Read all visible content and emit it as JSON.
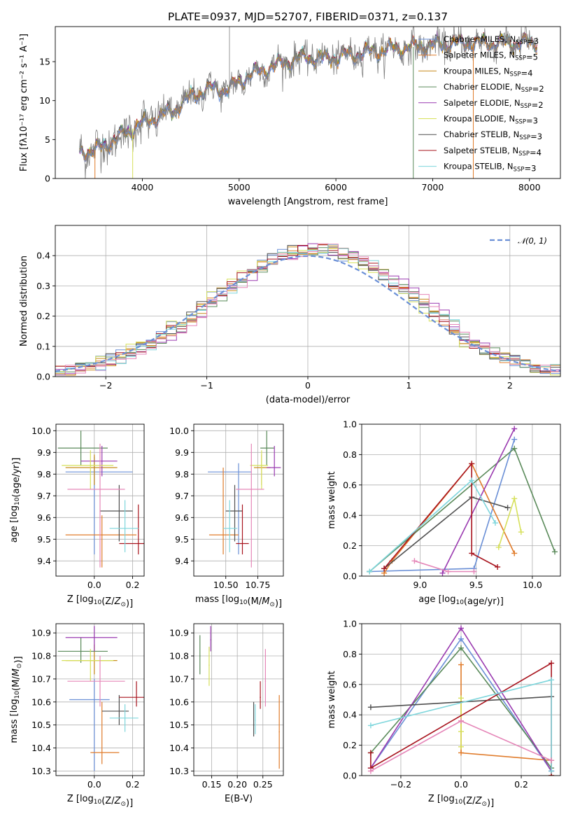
{
  "figure": {
    "title": "PLATE=0937, MJD=52707, FIBERID=0371, z=0.137"
  },
  "colors": {
    "data": "#808080",
    "models": [
      "#6a8fd6",
      "#e07b2a",
      "#c88a1a",
      "#5a8a5a",
      "#9a3ab0",
      "#d6e05a",
      "#505050",
      "#a8141e",
      "#7ed6dc"
    ],
    "extra_pink": "#e586b8",
    "normal": "#6a8fd6",
    "grid": "#b0b0b0"
  },
  "chart_data": [
    {
      "id": "spectrum",
      "type": "line",
      "title": "PLATE=0937, MJD=52707, FIBERID=0371, z=0.137",
      "xlabel": "wavelength [Angstrom, rest frame]",
      "ylabel": "Flux [fλ10⁻¹⁷ erg cm⁻² s⁻¹ A⁻¹]",
      "xlim": [
        3100,
        8320
      ],
      "ylim": [
        0,
        19.5
      ],
      "xticks": [
        4000,
        5000,
        6000,
        7000,
        8000
      ],
      "yticks": [
        0,
        5,
        10,
        15
      ],
      "grid": false,
      "legend_position": "top-right",
      "continuum_points": [
        [
          3350,
          3.4
        ],
        [
          3500,
          3.6
        ],
        [
          3650,
          4.5
        ],
        [
          3800,
          5.6
        ],
        [
          3950,
          6.8
        ],
        [
          4100,
          7.6
        ],
        [
          4300,
          8.6
        ],
        [
          4500,
          10.5
        ],
        [
          4700,
          11.5
        ],
        [
          4900,
          11.5
        ],
        [
          5100,
          13.2
        ],
        [
          5300,
          14.2
        ],
        [
          5500,
          15.0
        ],
        [
          5700,
          15.6
        ],
        [
          5900,
          15.4
        ],
        [
          6100,
          15.8
        ],
        [
          6300,
          16.2
        ],
        [
          6500,
          16.5
        ],
        [
          6700,
          16.8
        ],
        [
          6900,
          17.0
        ],
        [
          7100,
          17.2
        ],
        [
          7300,
          17.4
        ]
      ],
      "legend": [
        "Chabrier MILES, N_SSP=3",
        "Salpeter MILES, N_SSP=5",
        "Kroupa MILES, N_SSP=4",
        "Chabrier ELODIE, N_SSP=2",
        "Salpeter ELODIE, N_SSP=2",
        "Kroupa ELODIE, N_SSP=3",
        "Chabrier STELIB, N_SSP=3",
        "Salpeter STELIB, N_SSP=4",
        "Kroupa STELIB, N_SSP=3"
      ]
    },
    {
      "id": "residuals",
      "type": "bar",
      "xlabel": "(data-model)/error",
      "ylabel": "Normed distribution",
      "xlim": [
        -2.5,
        2.5
      ],
      "ylim": [
        0,
        0.5
      ],
      "xticks": [
        -2,
        -1,
        0,
        1,
        2
      ],
      "yticks": [
        0.0,
        0.1,
        0.2,
        0.3,
        0.4
      ],
      "grid": true,
      "legend_position": "top-right",
      "normal_label": "𝒩(0, 1)",
      "hist_bin_width": 0.1
    },
    {
      "id": "age_vs_Z",
      "type": "scatter",
      "xlabel": "Z [log10(Z/Z⊙)]",
      "ylabel": "age  [log10(age/yr)]",
      "xlim": [
        -0.2,
        0.26
      ],
      "ylim": [
        9.33,
        10.03
      ],
      "xticks": [
        0.0,
        0.2
      ],
      "yticks": [
        9.4,
        9.5,
        9.6,
        9.7,
        9.8,
        9.9,
        10.0
      ],
      "grid": true,
      "points": [
        {
          "c": 0,
          "x": 0.0,
          "y": 9.81,
          "xe": [
            -0.15,
            0.2
          ],
          "ye": [
            9.43,
            9.88
          ]
        },
        {
          "c": 1,
          "x": 0.04,
          "y": 9.52,
          "xe": [
            -0.15,
            0.22
          ],
          "ye": [
            9.37,
            9.61
          ]
        },
        {
          "c": 2,
          "x": 0.0,
          "y": 9.83,
          "xe": [
            -0.15,
            0.12
          ],
          "ye": [
            9.75,
            9.89
          ]
        },
        {
          "c": 3,
          "x": -0.07,
          "y": 9.92,
          "xe": [
            -0.19,
            0.07
          ],
          "ye": [
            9.84,
            10.0
          ]
        },
        {
          "c": 4,
          "x": 0.04,
          "y": 9.86,
          "xe": [
            -0.07,
            0.12
          ],
          "ye": [
            9.79,
            9.93
          ]
        },
        {
          "c": 5,
          "x": -0.02,
          "y": 9.84,
          "xe": [
            -0.17,
            0.1
          ],
          "ye": [
            9.73,
            9.91
          ]
        },
        {
          "c": 6,
          "x": 0.13,
          "y": 9.63,
          "xe": [
            0.03,
            0.2
          ],
          "ye": [
            9.49,
            9.75
          ]
        },
        {
          "c": 7,
          "x": 0.23,
          "y": 9.48,
          "xe": [
            0.13,
            0.26
          ],
          "ye": [
            9.43,
            9.66
          ]
        },
        {
          "c": 8,
          "x": 0.16,
          "y": 9.55,
          "xe": [
            0.08,
            0.23
          ],
          "ye": [
            9.44,
            9.68
          ]
        },
        {
          "c": "pink",
          "x": 0.03,
          "y": 9.73,
          "xe": [
            -0.14,
            0.16
          ],
          "ye": [
            9.37,
            9.94
          ]
        }
      ]
    },
    {
      "id": "age_vs_mass",
      "type": "scatter",
      "xlabel": "mass [log10(M/M⊙)]",
      "ylabel": "",
      "xlim": [
        10.25,
        10.95
      ],
      "ylim": [
        9.33,
        10.03
      ],
      "xticks": [
        10.5,
        10.75
      ],
      "yticks": [
        9.4,
        9.5,
        9.6,
        9.7,
        9.8,
        9.9,
        10.0
      ],
      "grid": true,
      "points": [
        {
          "c": 0,
          "x": 10.6,
          "y": 9.81,
          "xe": [
            10.36,
            10.7
          ],
          "ye": [
            9.43,
            9.85
          ]
        },
        {
          "c": 1,
          "x": 10.48,
          "y": 9.52,
          "xe": [
            10.37,
            10.6
          ],
          "ye": [
            9.43,
            9.83
          ]
        },
        {
          "c": 2,
          "x": 10.78,
          "y": 9.83,
          "xe": [
            10.72,
            10.85
          ],
          "ye": [
            9.75,
            9.89
          ]
        },
        {
          "c": 3,
          "x": 10.82,
          "y": 9.92,
          "xe": [
            10.77,
            10.88
          ],
          "ye": [
            9.84,
            10.0
          ]
        },
        {
          "c": 4,
          "x": 10.88,
          "y": 9.83,
          "xe": [
            10.82,
            10.93
          ],
          "ye": [
            9.79,
            9.93
          ]
        },
        {
          "c": 5,
          "x": 10.78,
          "y": 9.84,
          "xe": [
            10.69,
            10.83
          ],
          "ye": [
            9.73,
            9.91
          ]
        },
        {
          "c": 6,
          "x": 10.57,
          "y": 9.63,
          "xe": [
            10.5,
            10.63
          ],
          "ye": [
            9.49,
            9.75
          ]
        },
        {
          "c": 7,
          "x": 10.63,
          "y": 9.48,
          "xe": [
            10.58,
            10.68
          ],
          "ye": [
            9.43,
            9.66
          ]
        },
        {
          "c": 8,
          "x": 10.53,
          "y": 9.55,
          "xe": [
            10.48,
            10.59
          ],
          "ye": [
            9.44,
            9.68
          ]
        },
        {
          "c": "pink",
          "x": 10.7,
          "y": 9.73,
          "xe": [
            10.58,
            10.8
          ],
          "ye": [
            9.37,
            9.94
          ]
        }
      ]
    },
    {
      "id": "weight_vs_age",
      "type": "line",
      "xlabel": "age  [log10(age/yr)]",
      "ylabel": "mass weight",
      "xlim": [
        8.48,
        10.25
      ],
      "ylim": [
        0,
        1.0
      ],
      "xticks": [
        9.0,
        9.5,
        10.0
      ],
      "yticks": [
        0.0,
        0.2,
        0.4,
        0.6,
        0.8,
        1.0
      ],
      "grid": true,
      "series": [
        {
          "c": 0,
          "points": [
            [
              8.55,
              0.03
            ],
            [
              9.48,
              0.05
            ],
            [
              9.84,
              0.9
            ]
          ]
        },
        {
          "c": 1,
          "points": [
            [
              8.68,
              0.02
            ],
            [
              8.75,
              0.1
            ],
            [
              9.46,
              0.74
            ],
            [
              9.84,
              0.15
            ]
          ]
        },
        {
          "c": 3,
          "points": [
            [
              8.55,
              0.03
            ],
            [
              9.84,
              0.84
            ],
            [
              10.2,
              0.16
            ]
          ]
        },
        {
          "c": 4,
          "points": [
            [
              9.2,
              0.02
            ],
            [
              9.84,
              0.97
            ]
          ]
        },
        {
          "c": 5,
          "points": [
            [
              9.7,
              0.19
            ],
            [
              9.84,
              0.51
            ],
            [
              9.9,
              0.29
            ]
          ]
        },
        {
          "c": 6,
          "points": [
            [
              8.68,
              0.05
            ],
            [
              9.46,
              0.52
            ],
            [
              9.78,
              0.45
            ]
          ]
        },
        {
          "c": 7,
          "points": [
            [
              8.68,
              0.05
            ],
            [
              9.46,
              0.74
            ],
            [
              9.46,
              0.15
            ],
            [
              9.69,
              0.06
            ]
          ]
        },
        {
          "c": 8,
          "points": [
            [
              8.55,
              0.03
            ],
            [
              9.46,
              0.63
            ],
            [
              9.67,
              0.35
            ]
          ]
        },
        {
          "c": "pink",
          "points": [
            [
              8.95,
              0.1
            ],
            [
              9.25,
              0.03
            ],
            [
              9.48,
              0.03
            ]
          ]
        }
      ]
    },
    {
      "id": "mass_vs_Z",
      "type": "scatter",
      "xlabel": "Z [log10(Z/Z⊙)]",
      "ylabel": "mass [log10(M/M⊙)]",
      "xlim": [
        -0.2,
        0.26
      ],
      "ylim": [
        10.28,
        10.94
      ],
      "xticks": [
        0.0,
        0.2
      ],
      "yticks": [
        10.3,
        10.4,
        10.5,
        10.6,
        10.7,
        10.8,
        10.9
      ],
      "grid": true,
      "points": [
        {
          "c": 0,
          "x": 0.0,
          "y": 10.61,
          "xe": [
            -0.13,
            0.08
          ],
          "ye": [
            10.3,
            10.7
          ]
        },
        {
          "c": 1,
          "x": 0.04,
          "y": 10.38,
          "xe": [
            -0.02,
            0.13
          ],
          "ye": [
            10.33,
            10.6
          ]
        },
        {
          "c": 2,
          "x": 0.0,
          "y": 10.78,
          "xe": [
            -0.15,
            0.12
          ],
          "ye": [
            10.72,
            10.85
          ]
        },
        {
          "c": 3,
          "x": -0.07,
          "y": 10.82,
          "xe": [
            -0.19,
            0.07
          ],
          "ye": [
            10.77,
            10.88
          ]
        },
        {
          "c": 4,
          "x": 0.0,
          "y": 10.88,
          "xe": [
            -0.15,
            0.12
          ],
          "ye": [
            10.82,
            10.93
          ]
        },
        {
          "c": 5,
          "x": -0.02,
          "y": 10.78,
          "xe": [
            -0.17,
            0.1
          ],
          "ye": [
            10.69,
            10.83
          ]
        },
        {
          "c": 6,
          "x": 0.13,
          "y": 10.56,
          "xe": [
            0.04,
            0.18
          ],
          "ye": [
            10.5,
            10.63
          ]
        },
        {
          "c": 7,
          "x": 0.22,
          "y": 10.62,
          "xe": [
            0.13,
            0.26
          ],
          "ye": [
            10.58,
            10.69
          ]
        },
        {
          "c": 8,
          "x": 0.16,
          "y": 10.53,
          "xe": [
            0.08,
            0.23
          ],
          "ye": [
            10.47,
            10.59
          ]
        },
        {
          "c": "pink",
          "x": 0.03,
          "y": 10.69,
          "xe": [
            -0.14,
            0.16
          ],
          "ye": [
            10.58,
            10.8
          ]
        }
      ]
    },
    {
      "id": "mass_vs_ebv",
      "type": "scatter",
      "xlabel": "E(B-V)",
      "ylabel": "",
      "xlim": [
        0.115,
        0.29
      ],
      "ylim": [
        10.28,
        10.94
      ],
      "xticks": [
        0.15,
        0.2,
        0.25
      ],
      "yticks": [
        10.3,
        10.4,
        10.5,
        10.6,
        10.7,
        10.8,
        10.9
      ],
      "grid": true,
      "points": [
        {
          "c": 3,
          "x": 0.127,
          "y": 10.8,
          "xe": [
            0.126,
            0.128
          ],
          "ye": [
            10.72,
            10.89
          ]
        },
        {
          "c": 5,
          "x": 0.145,
          "y": 10.76,
          "xe": [
            0.144,
            0.146
          ],
          "ye": [
            10.67,
            10.84
          ]
        },
        {
          "c": 4,
          "x": 0.148,
          "y": 10.87,
          "xe": [
            0.147,
            0.149
          ],
          "ye": [
            10.82,
            10.93
          ]
        },
        {
          "c": 6,
          "x": 0.232,
          "y": 10.5,
          "xe": [
            0.231,
            0.233
          ],
          "ye": [
            10.45,
            10.6
          ]
        },
        {
          "c": 8,
          "x": 0.235,
          "y": 10.52,
          "xe": [
            0.234,
            0.236
          ],
          "ye": [
            10.46,
            10.59
          ]
        },
        {
          "c": 7,
          "x": 0.245,
          "y": 10.62,
          "xe": [
            0.244,
            0.246
          ],
          "ye": [
            10.57,
            10.69
          ]
        },
        {
          "c": "pink",
          "x": 0.255,
          "y": 10.69,
          "xe": [
            0.254,
            0.256
          ],
          "ye": [
            10.58,
            10.83
          ]
        },
        {
          "c": 1,
          "x": 0.282,
          "y": 10.47,
          "xe": [
            0.281,
            0.283
          ],
          "ye": [
            10.31,
            10.63
          ]
        }
      ]
    },
    {
      "id": "weight_vs_Z",
      "type": "line",
      "xlabel": "Z [log10(Z/Z⊙)]",
      "ylabel": "mass weight",
      "xlim": [
        -0.33,
        0.33
      ],
      "ylim": [
        0,
        1.0
      ],
      "xticks": [
        -0.2,
        0.0,
        0.2
      ],
      "yticks": [
        0.0,
        0.2,
        0.4,
        0.6,
        0.8,
        1.0
      ],
      "grid": true,
      "series": [
        {
          "c": 0,
          "points": [
            [
              -0.3,
              0.05
            ],
            [
              0.0,
              0.9
            ],
            [
              0.3,
              0.03
            ]
          ]
        },
        {
          "c": 1,
          "points": [
            [
              0.0,
              0.73
            ],
            [
              0.0,
              0.15
            ],
            [
              0.3,
              0.1
            ],
            [
              0.3,
              0.0
            ]
          ]
        },
        {
          "c": 3,
          "points": [
            [
              -0.3,
              0.15
            ],
            [
              0.0,
              0.84
            ],
            [
              0.3,
              0.05
            ]
          ]
        },
        {
          "c": 4,
          "points": [
            [
              -0.3,
              0.05
            ],
            [
              0.0,
              0.97
            ],
            [
              0.3,
              0.03
            ]
          ]
        },
        {
          "c": 5,
          "points": [
            [
              0.0,
              0.51
            ],
            [
              0.0,
              0.29
            ],
            [
              0.0,
              0.19
            ]
          ]
        },
        {
          "c": 6,
          "points": [
            [
              -0.3,
              0.45
            ],
            [
              0.3,
              0.52
            ]
          ]
        },
        {
          "c": 7,
          "points": [
            [
              -0.3,
              0.15
            ],
            [
              -0.3,
              0.05
            ],
            [
              0.3,
              0.74
            ],
            [
              0.3,
              0.0
            ]
          ]
        },
        {
          "c": 8,
          "points": [
            [
              -0.3,
              0.33
            ],
            [
              0.3,
              0.63
            ],
            [
              0.3,
              0.03
            ]
          ]
        },
        {
          "c": "pink",
          "points": [
            [
              -0.3,
              0.03
            ],
            [
              0.0,
              0.36
            ],
            [
              0.3,
              0.1
            ]
          ]
        }
      ]
    }
  ]
}
